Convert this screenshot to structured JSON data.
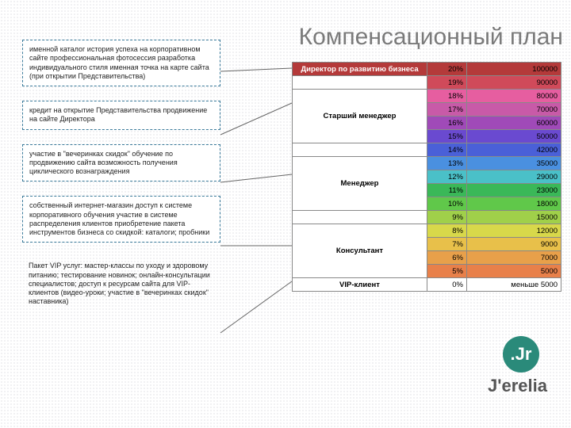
{
  "title": "Компенсационный план",
  "left_boxes": [
    "именной каталог\nистория успеха на корпоративном сайте\nпрофессиональная фотосессия\nразработка индивидуального стиля\nименная точка на карте сайта\n(при открытии Представительства)",
    "кредит на открытие Представительства\nпродвижение на сайте Директора",
    "участие в \"вечеринках скидок\"\nобучение по продвижению сайта\nвозможность получения циклического вознаграждения",
    "собственный интернет-магазин\nдоступ к системе корпоративного обучения\nучастие в системе распределения клиентов\nприобретение пакета инструментов бизнеса со скидкой: каталоги; пробники",
    "Пакет VIP услуг:\nмастер-классы по уходу и здоровому питанию;\nтестирование новинок;\nонлайн-консультации специалистов;\nдоступ к ресурсам сайта для VIP-клиентов (видео-уроки; участие в \"вечеринках скидок\" наставника)"
  ],
  "brand": "J'erelia",
  "logo": ".Jr",
  "last_val": "меньше 5000",
  "rows": [
    {
      "role": "Директор по развитию бизнеса",
      "pct": "20%",
      "val": "100000",
      "c": "#b43a3a",
      "role_start": true,
      "role_span": 1
    },
    {
      "role": "",
      "pct": "19%",
      "val": "90000",
      "c": "#d04a5a"
    },
    {
      "role": "",
      "pct": "18%",
      "val": "80000",
      "c": "#e65ea0"
    },
    {
      "role": "Старший менеджер",
      "pct": "17%",
      "val": "70000",
      "c": "#c85aa8",
      "role_start": true,
      "role_span": 4
    },
    {
      "role": "",
      "pct": "16%",
      "val": "60000",
      "c": "#a04ab8"
    },
    {
      "role": "",
      "pct": "15%",
      "val": "50000",
      "c": "#6a4ad0"
    },
    {
      "role": "",
      "pct": "14%",
      "val": "42000",
      "c": "#4a60d8"
    },
    {
      "role": "",
      "pct": "13%",
      "val": "35000",
      "c": "#4a90e0"
    },
    {
      "role": "Менеджер",
      "pct": "12%",
      "val": "29000",
      "c": "#4ac0c8",
      "role_start": true,
      "role_span": 4
    },
    {
      "role": "",
      "pct": "11%",
      "val": "23000",
      "c": "#3ab858"
    },
    {
      "role": "",
      "pct": "10%",
      "val": "18000",
      "c": "#60c84a"
    },
    {
      "role": "",
      "pct": "9%",
      "val": "15000",
      "c": "#a0d04a"
    },
    {
      "role": "",
      "pct": "8%",
      "val": "12000",
      "c": "#d8d84a"
    },
    {
      "role": "Консультант",
      "pct": "7%",
      "val": "9000",
      "c": "#e8c04a",
      "role_start": true,
      "role_span": 4
    },
    {
      "role": "",
      "pct": "6%",
      "val": "7000",
      "c": "#e8a04a"
    },
    {
      "role": "",
      "pct": "5%",
      "val": "5000",
      "c": "#e8804a"
    },
    {
      "role": "VIP-клиент",
      "pct": "0%",
      "val": "меньше 5000",
      "c": "#ffffff",
      "role_start": true,
      "role_span": 1
    }
  ],
  "role_cells": [
    {
      "label": "Директор по развитию бизнеса",
      "span": 1,
      "bg": "#b43a3a",
      "fg": "#fff"
    },
    {
      "label": "",
      "span": 1,
      "bg": "#fff",
      "fg": "#000"
    },
    {
      "label": "Старший менеджер",
      "span": 4,
      "bg": "#fff",
      "fg": "#000"
    },
    {
      "label": "",
      "span": 1,
      "bg": "#fff",
      "fg": "#000"
    },
    {
      "label": "Менеджер",
      "span": 4,
      "bg": "#fff",
      "fg": "#000"
    },
    {
      "label": "",
      "span": 1,
      "bg": "#fff",
      "fg": "#000"
    },
    {
      "label": "Консультант",
      "span": 4,
      "bg": "#fff",
      "fg": "#000"
    },
    {
      "label": "VIP-клиент",
      "span": 1,
      "bg": "#fff",
      "fg": "#000"
    }
  ]
}
